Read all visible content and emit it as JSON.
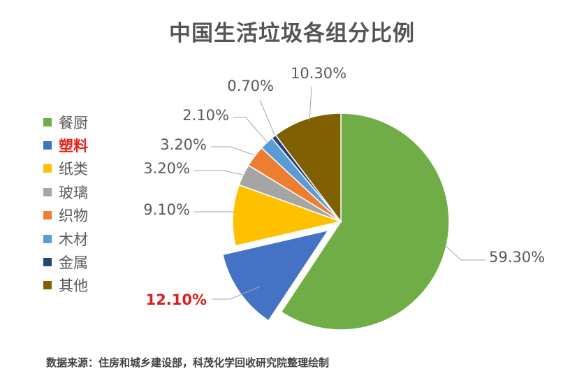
{
  "chart_data": {
    "type": "pie",
    "title": "中国生活垃圾各组分比例",
    "categories": [
      "餐厨",
      "塑料",
      "纸类",
      "玻璃",
      "织物",
      "木材",
      "金属",
      "其他"
    ],
    "values": [
      59.3,
      12.1,
      9.1,
      3.2,
      3.2,
      2.1,
      0.7,
      10.3
    ],
    "data_labels": [
      "59.30%",
      "12.10%",
      "9.10%",
      "3.20%",
      "3.20%",
      "2.10%",
      "0.70%",
      "10.30%"
    ],
    "colors": [
      "#70ad47",
      "#4472c4",
      "#ffc000",
      "#a5a5a5",
      "#ed7d31",
      "#5b9bd5",
      "#264478",
      "#7f5f00"
    ],
    "highlight_category": "塑料",
    "highlight_color": "#e2231a",
    "exploded_category": "塑料",
    "start": "12 o'clock",
    "direction": "clockwise",
    "legend_position": "left"
  },
  "source_note": "数据来源：住房和城乡建设部，科茂化学回收研究院整理绘制"
}
